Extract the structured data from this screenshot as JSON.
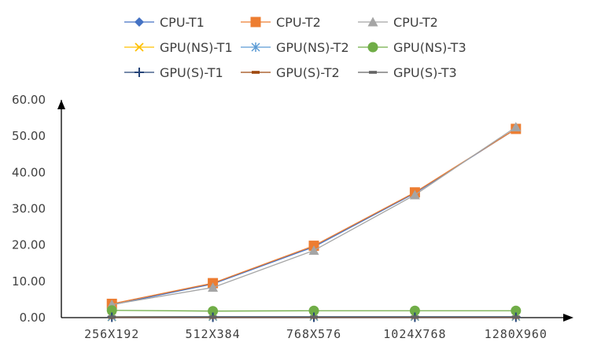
{
  "chart_data": {
    "type": "line",
    "categories": [
      "256X192",
      "512X384",
      "768X576",
      "1024X768",
      "1280X960"
    ],
    "ylim": [
      0,
      60
    ],
    "yticks": [
      "0.00",
      "10.00",
      "20.00",
      "30.00",
      "40.00",
      "50.00",
      "60.00"
    ],
    "grid": false,
    "legend_position": "top",
    "series": [
      {
        "name": "CPU-T1",
        "color": "#4472C4",
        "marker": "diamond",
        "values": [
          3.5,
          9.3,
          19.5,
          34.3,
          52.0
        ]
      },
      {
        "name": "CPU-T2",
        "color": "#ED7D31",
        "marker": "square",
        "values": [
          3.8,
          9.5,
          19.8,
          34.5,
          52.0
        ]
      },
      {
        "name": "CPU-T2",
        "color": "#A5A5A5",
        "marker": "triangle",
        "values": [
          3.6,
          8.3,
          18.5,
          33.8,
          52.5
        ]
      },
      {
        "name": "GPU(NS)-T1",
        "color": "#FFC000",
        "marker": "x",
        "values": [
          0.2,
          0.3,
          0.3,
          0.3,
          0.3
        ]
      },
      {
        "name": "GPU(NS)-T2",
        "color": "#5B9BD5",
        "marker": "asterisk",
        "values": [
          0.2,
          0.3,
          0.3,
          0.3,
          0.3
        ]
      },
      {
        "name": "GPU(NS)-T3",
        "color": "#70AD47",
        "marker": "circle",
        "values": [
          2.0,
          1.8,
          1.9,
          1.9,
          1.9
        ]
      },
      {
        "name": "GPU(S)-T1",
        "color": "#264478",
        "marker": "plus",
        "values": [
          0.1,
          0.1,
          0.1,
          0.1,
          0.1
        ]
      },
      {
        "name": "GPU(S)-T2",
        "color": "#9E480E",
        "marker": "dash",
        "values": [
          0.1,
          0.1,
          0.1,
          0.1,
          0.1
        ]
      },
      {
        "name": "GPU(S)-T3",
        "color": "#636363",
        "marker": "dash",
        "values": [
          0.2,
          0.2,
          0.2,
          0.2,
          0.2
        ]
      }
    ]
  }
}
